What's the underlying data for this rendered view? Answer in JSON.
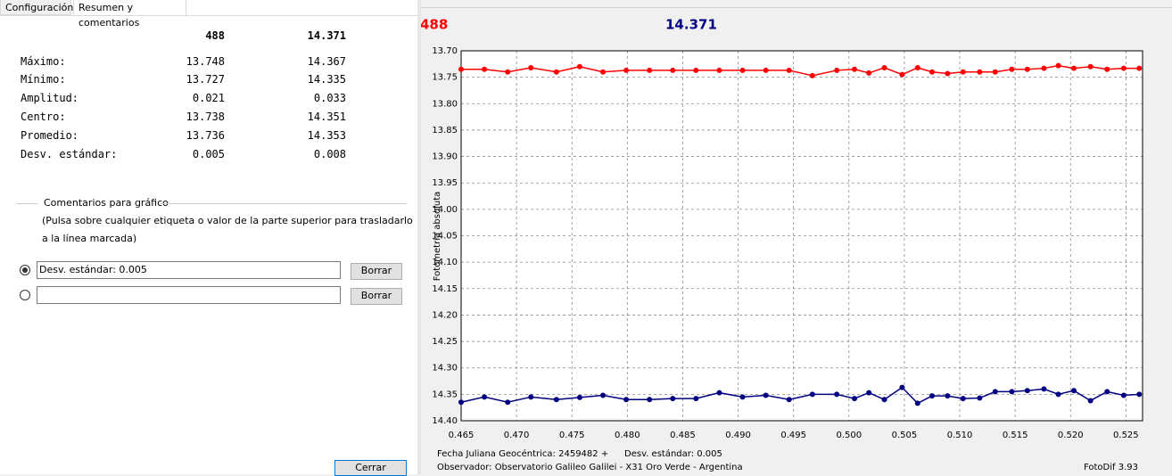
{
  "tabs": [
    "Configuración",
    "Resumen y comentarios"
  ],
  "summary": {
    "header": [
      "488",
      "14.371"
    ],
    "rows": [
      [
        "Máximo:",
        "13.748",
        "14.367"
      ],
      [
        "Mínimo:",
        "13.727",
        "14.335"
      ],
      [
        "Amplitud:",
        "0.021",
        "0.033"
      ],
      [
        "Centro:",
        "13.738",
        "14.351"
      ],
      [
        "Promedio:",
        "13.736",
        "14.353"
      ],
      [
        "Desv. estándar:",
        "0.005",
        "0.008"
      ]
    ]
  },
  "comments": {
    "title": "Comentarios para gráfico",
    "help": [
      "(Pulsa sobre cualquier etiqueta o valor de la parte superior para trasladarlo",
      "a la línea marcada)"
    ],
    "entries": [
      "Desv. estándar: 0.005"
    ],
    "clear_button": "Borrar"
  },
  "close_button": "Cerrar",
  "chart_data": {
    "type": "line",
    "y_label": "Fotometría absoluta",
    "y_inverted": true,
    "grid": true,
    "x": [
      0.465,
      0.4671,
      0.4692,
      0.4713,
      0.4736,
      0.4757,
      0.4778,
      0.4799,
      0.482,
      0.4841,
      0.4862,
      0.4883,
      0.4904,
      0.4925,
      0.4946,
      0.4967,
      0.4989,
      0.5005,
      0.5018,
      0.5032,
      0.5048,
      0.5062,
      0.5075,
      0.5089,
      0.5103,
      0.5118,
      0.5132,
      0.5147,
      0.5161,
      0.5176,
      0.5189,
      0.5203,
      0.5218,
      0.5233,
      0.5248,
      0.5262
    ],
    "series": [
      {
        "name": "488",
        "color": "#ff0000",
        "values": [
          13.735,
          13.735,
          13.74,
          13.732,
          13.74,
          13.73,
          13.74,
          13.737,
          13.737,
          13.737,
          13.737,
          13.737,
          13.737,
          13.737,
          13.737,
          13.747,
          13.737,
          13.735,
          13.742,
          13.732,
          13.745,
          13.732,
          13.74,
          13.743,
          13.74,
          13.74,
          13.74,
          13.735,
          13.735,
          13.733,
          13.728,
          13.733,
          13.73,
          13.735,
          13.733,
          13.733
        ]
      },
      {
        "name": "14.371",
        "color": "#000080",
        "values": [
          14.365,
          14.355,
          14.365,
          14.355,
          14.36,
          14.356,
          14.352,
          14.36,
          14.36,
          14.358,
          14.358,
          14.347,
          14.355,
          14.352,
          14.36,
          14.35,
          14.35,
          14.358,
          14.347,
          14.36,
          14.337,
          14.367,
          14.353,
          14.353,
          14.358,
          14.357,
          14.345,
          14.345,
          14.343,
          14.34,
          14.35,
          14.343,
          14.362,
          14.345,
          14.352,
          14.35
        ]
      }
    ],
    "xlim": [
      0.465,
      0.5265
    ],
    "xticks": [
      0.465,
      {
        "value": 0.47,
        "label": "0.470"
      },
      0.475,
      {
        "value": 0.48,
        "label": "0.480"
      },
      0.485,
      {
        "value": 0.49,
        "label": "0.490"
      },
      0.495,
      {
        "value": 0.5,
        "label": "0.500"
      },
      0.505,
      {
        "value": 0.51,
        "label": "0.510"
      },
      0.515,
      {
        "value": 0.52,
        "label": "0.520"
      },
      0.525
    ],
    "ylim": [
      13.7,
      14.4
    ],
    "yticks": [
      {
        "value": 13.7,
        "label": "13.70"
      },
      13.75,
      {
        "value": 13.8,
        "label": "13.80"
      },
      13.85,
      {
        "value": 13.9,
        "label": "13.90"
      },
      13.95,
      {
        "value": 14.0,
        "label": "14.00"
      },
      14.05,
      {
        "value": 14.1,
        "label": "14.10"
      },
      14.15,
      {
        "value": 14.2,
        "label": "14.20"
      },
      14.25,
      {
        "value": 14.3,
        "label": "14.30"
      },
      14.35,
      {
        "value": 14.4,
        "label": "14.40"
      }
    ],
    "footer": {
      "date": "Fecha Juliana Geocéntrica: 2459482 +",
      "stdev": "Desv. estándar: 0.005",
      "observer": "Observador: Observatorio Galileo Galilei - X31 Oro Verde - Argentina",
      "software": "FotoDif 3.93"
    }
  }
}
